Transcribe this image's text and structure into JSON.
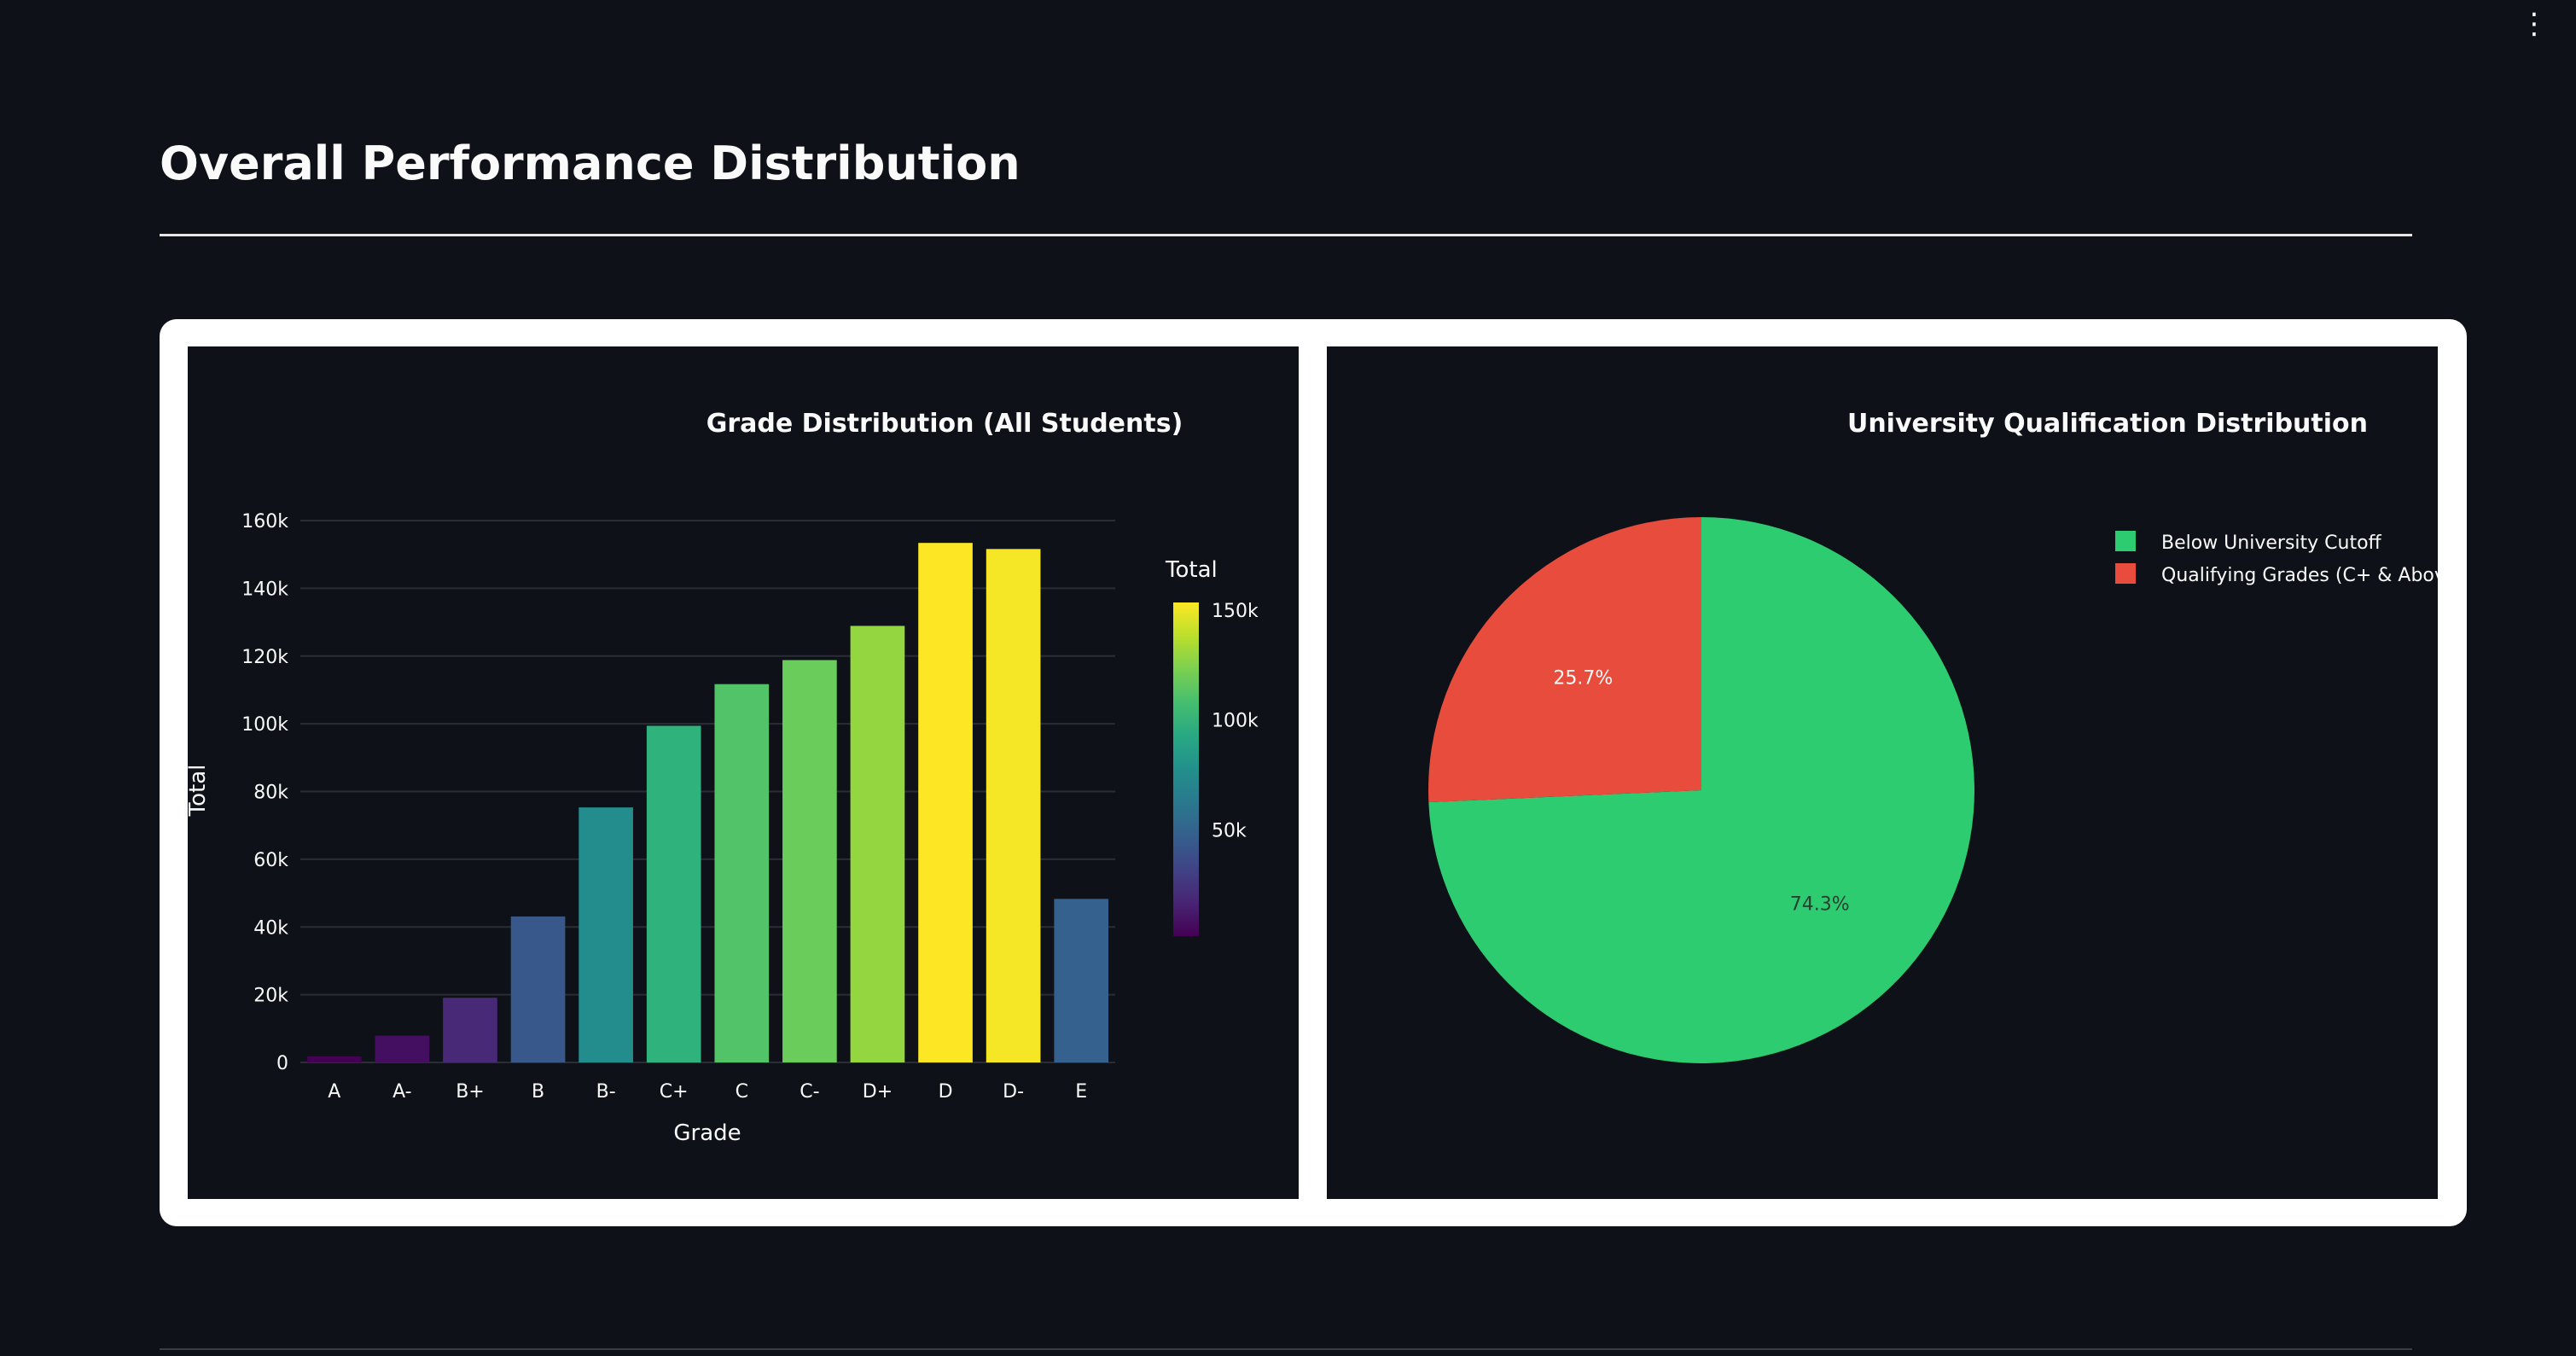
{
  "page": {
    "title": "Overall Performance Distribution",
    "menu_icon": "vertical-ellipsis-icon"
  },
  "chart_data": [
    {
      "type": "bar",
      "title": "Grade Distribution (All Students)",
      "xlabel": "Grade",
      "ylabel": "Total",
      "categories": [
        "A",
        "A-",
        "B+",
        "B",
        "B-",
        "C+",
        "C",
        "C-",
        "D+",
        "D",
        "D-",
        "E"
      ],
      "values": [
        1800,
        7900,
        19100,
        43100,
        75300,
        99400,
        111700,
        118800,
        128900,
        153400,
        151600,
        48300
      ],
      "ylim": [
        0,
        160000
      ],
      "yticks": [
        0,
        20000,
        40000,
        60000,
        80000,
        100000,
        120000,
        140000,
        160000
      ],
      "ytick_labels": [
        "0",
        "20k",
        "40k",
        "60k",
        "80k",
        "100k",
        "120k",
        "140k",
        "160k"
      ],
      "grid": true,
      "colorscale": "viridis",
      "colorbar": {
        "title": "Total",
        "range": [
          1800,
          153400
        ],
        "ticks": [
          50000,
          100000,
          150000
        ],
        "tick_labels": [
          "50k",
          "100k",
          "150k"
        ]
      }
    },
    {
      "type": "pie",
      "title": "University Qualification Distribution",
      "labels": [
        "Below University Cutoff",
        "Qualifying Grades (C+ & Above)"
      ],
      "values": [
        74.3,
        25.7
      ],
      "value_labels": [
        "74.3%",
        "25.7%"
      ],
      "colors": [
        "#2ecc71",
        "#e74c3c"
      ],
      "legend": "top-right"
    }
  ]
}
